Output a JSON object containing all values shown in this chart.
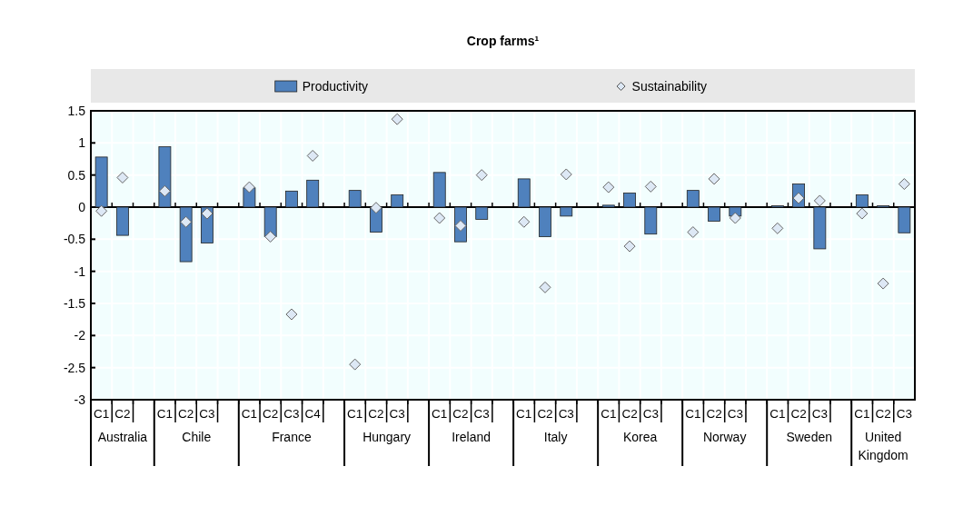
{
  "chart_data": {
    "type": "bar",
    "title": "Crop farms¹",
    "categories": [
      "C1",
      "C2",
      null,
      "C1",
      "C2",
      "C3",
      null,
      "C1",
      "C2",
      "C3",
      "C4",
      null,
      "C1",
      "C2",
      "C3",
      null,
      "C1",
      "C2",
      "C3",
      null,
      "C1",
      "C2",
      "C3",
      null,
      "C1",
      "C2",
      "C3",
      null,
      "C1",
      "C2",
      "C3",
      null,
      "C1",
      "C2",
      "C3",
      null,
      "C1",
      "C2",
      "C3"
    ],
    "annotations": [
      "Australia",
      "Chile",
      "France",
      "Hungary",
      "Ireland",
      "Italy",
      "Korea",
      "Norway",
      "Sweden",
      "United Kingdom"
    ],
    "series": [
      {
        "name": "Productivity",
        "color": "#4f81bd",
        "values": [
          0.78,
          -0.44,
          null,
          0.94,
          -0.85,
          -0.56,
          null,
          0.3,
          -0.46,
          0.25,
          0.42,
          null,
          0.26,
          -0.39,
          0.19,
          null,
          0.54,
          -0.54,
          -0.19,
          null,
          0.44,
          -0.46,
          -0.14,
          null,
          0.03,
          0.22,
          -0.42,
          null,
          0.26,
          -0.22,
          -0.14,
          null,
          0.02,
          0.36,
          -0.65,
          null,
          0.19,
          0.02,
          -0.4
        ]
      },
      {
        "name": "Sustainability",
        "type": "scatter",
        "color": "#dde8f5",
        "values": [
          -0.06,
          0.46,
          null,
          0.25,
          -0.23,
          -0.1,
          null,
          0.31,
          -0.46,
          -1.67,
          0.8,
          null,
          -2.45,
          -0.01,
          1.37,
          null,
          -0.17,
          -0.29,
          0.5,
          null,
          -0.23,
          -1.25,
          0.51,
          null,
          0.31,
          -0.61,
          0.32,
          null,
          -0.39,
          0.44,
          -0.17,
          null,
          -0.33,
          0.14,
          0.1,
          null,
          -0.1,
          -1.19,
          0.36
        ]
      }
    ],
    "ylim": [
      -3,
      1.5
    ],
    "yticks": [
      -3,
      -2.5,
      -2,
      -1.5,
      -1,
      -0.5,
      0,
      0.5,
      1,
      1.5
    ],
    "grid": true,
    "legend": "top",
    "marker": "diamond"
  }
}
